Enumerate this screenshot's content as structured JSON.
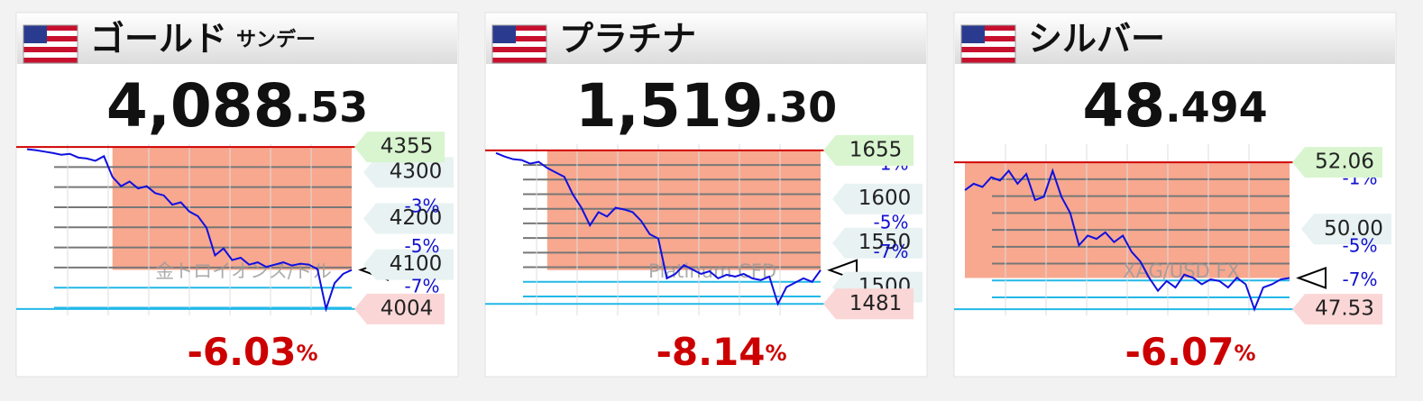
{
  "chart_data": [
    {
      "type": "line",
      "title": "ゴールド",
      "subtitle": "サンデー",
      "price_int": "4,088",
      "price_dec": ".53",
      "change": "-6.03",
      "change_unit": "%",
      "watermark": "金トロイオンス/ドル",
      "values": [
        4350,
        4348,
        4345,
        4342,
        4338,
        4340,
        4332,
        4330,
        4325,
        4335,
        4290,
        4270,
        4280,
        4265,
        4270,
        4255,
        4250,
        4230,
        4235,
        4215,
        4205,
        4180,
        4120,
        4135,
        4110,
        4115,
        4100,
        4105,
        4095,
        4100,
        4105,
        4098,
        4102,
        4100,
        4090,
        4004,
        4060,
        4080,
        4088.53
      ],
      "color": "#1010e0",
      "ylim": [
        3990,
        4361
      ],
      "yticks": [
        4300,
        4200,
        4100
      ],
      "high": 4355,
      "low": 4004,
      "pct_grid": [
        -1,
        -2,
        -3,
        -4,
        -5,
        -6,
        -7,
        -8
      ],
      "pct_ticks": [
        {
          "value": -3,
          "label": "-3%"
        },
        {
          "value": -5,
          "label": "-5%"
        },
        {
          "value": -7,
          "label": "-7%"
        }
      ]
    },
    {
      "type": "line",
      "title": "プラチナ",
      "price_int": "1,519",
      "price_dec": ".30",
      "change": "-8.14",
      "change_unit": "%",
      "watermark": "Platinum CFD",
      "values": [
        1652,
        1648,
        1645,
        1644,
        1640,
        1642,
        1635,
        1630,
        1625,
        1605,
        1590,
        1570,
        1585,
        1580,
        1590,
        1588,
        1585,
        1575,
        1560,
        1555,
        1510,
        1515,
        1525,
        1520,
        1515,
        1518,
        1510,
        1514,
        1512,
        1515,
        1510,
        1508,
        1512,
        1481,
        1500,
        1505,
        1510,
        1506,
        1519.3
      ],
      "color": "#1010e0",
      "ylim": [
        1468,
        1662
      ],
      "yticks": [
        1600,
        1550,
        1500
      ],
      "high": 1655,
      "low": 1481,
      "pct_grid": [
        -1,
        -2,
        -3,
        -4,
        -5,
        -6,
        -7,
        -8,
        -9,
        -10
      ],
      "pct_ticks": [
        {
          "value": -1,
          "label": "-1%"
        },
        {
          "value": -5,
          "label": "-5%"
        },
        {
          "value": -7,
          "label": "-7%"
        }
      ]
    },
    {
      "type": "line",
      "title": "シルバー",
      "price_int": "48",
      "price_dec": ".494",
      "change": "-6.07",
      "change_unit": "%",
      "watermark": "XAG/USD FX",
      "values": [
        51.2,
        51.4,
        51.3,
        51.6,
        51.5,
        51.8,
        51.4,
        51.7,
        50.9,
        51.0,
        51.8,
        51.0,
        50.5,
        49.5,
        49.8,
        49.7,
        49.9,
        49.6,
        49.8,
        49.3,
        49.0,
        48.5,
        48.1,
        48.4,
        48.2,
        48.6,
        48.5,
        48.3,
        48.45,
        48.4,
        48.2,
        48.5,
        48.3,
        47.53,
        48.2,
        48.3,
        48.45,
        48.494
      ],
      "color": "#1010e0",
      "ylim": [
        47.34,
        52.62
      ],
      "yticks": [
        {
          "value": 50,
          "label": "50.00"
        }
      ],
      "high": 52.06,
      "low": 47.53,
      "pct_grid": [
        -1,
        -2,
        -3,
        -4,
        -5,
        -6,
        -7,
        -8
      ],
      "pct_ticks": [
        {
          "value": -1,
          "label": "-1%"
        },
        {
          "value": -5,
          "label": "-5%"
        },
        {
          "value": -7,
          "label": "-7%"
        }
      ]
    }
  ]
}
